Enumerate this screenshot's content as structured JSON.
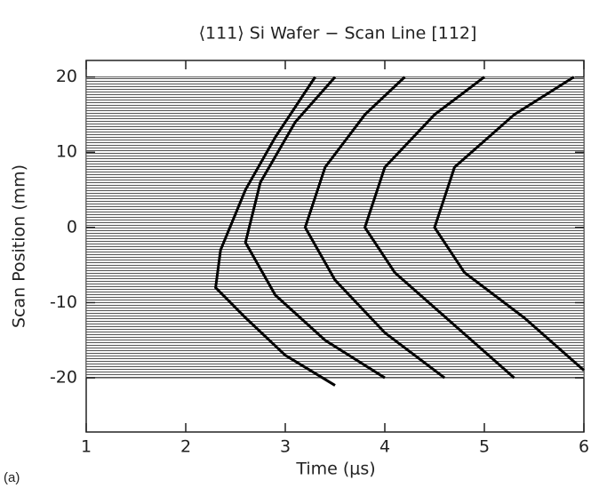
{
  "chart_data": {
    "type": "waterfall",
    "title": "⟨111⟩ Si Wafer − Scan Line [112]",
    "panel_label": "(a)",
    "x_label": "Time (μs)",
    "y_label": "Scan Position (mm)",
    "xlim": [
      1,
      6
    ],
    "ylim": [
      -27.2,
      22.2
    ],
    "xticks": [
      1,
      2,
      3,
      4,
      5,
      6
    ],
    "yticks": [
      -20,
      -10,
      0,
      10,
      20
    ],
    "trace_band": [
      -20,
      20
    ],
    "trace_color": "#555555",
    "series": [
      {
        "color": "#000000",
        "x": [
          3.5,
          3.0,
          2.6,
          2.3,
          2.35,
          2.6,
          2.9,
          3.3
        ],
        "values": [
          -21,
          -17,
          -12,
          -8,
          -3,
          5,
          12,
          20
        ]
      },
      {
        "color": "#000000",
        "x": [
          4.0,
          3.4,
          2.9,
          2.6,
          2.75,
          3.1,
          3.5
        ],
        "values": [
          -20,
          -15,
          -9,
          -2,
          6,
          14,
          20
        ]
      },
      {
        "color": "#000000",
        "x": [
          4.6,
          4.0,
          3.5,
          3.2,
          3.4,
          3.8,
          4.2
        ],
        "values": [
          -20,
          -14,
          -7,
          0,
          8,
          15,
          20
        ]
      },
      {
        "color": "#000000",
        "x": [
          5.3,
          4.7,
          4.1,
          3.8,
          4.0,
          4.5,
          5.0
        ],
        "values": [
          -20,
          -13,
          -6,
          0,
          8,
          15,
          20
        ]
      },
      {
        "color": "#000000",
        "x": [
          6,
          5.4,
          4.8,
          4.5,
          4.7,
          5.3,
          5.9
        ],
        "values": [
          -19,
          -12,
          -6,
          0,
          8,
          15,
          20
        ]
      }
    ]
  }
}
